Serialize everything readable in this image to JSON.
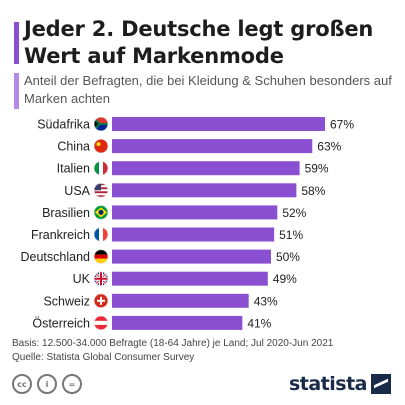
{
  "header": {
    "title": "Jeder 2. Deutsche legt großen Wert auf Markenmode",
    "subtitle": "Anteil der Befragten, die bei Kleidung & Schuhen besonders auf Marken achten"
  },
  "chart_data": {
    "type": "bar",
    "orientation": "horizontal",
    "categories": [
      "Südafrika",
      "China",
      "Italien",
      "USA",
      "Brasilien",
      "Frankreich",
      "Deutschland",
      "UK",
      "Schweiz",
      "Österreich"
    ],
    "values": [
      67,
      63,
      59,
      58,
      52,
      51,
      50,
      49,
      43,
      41
    ],
    "value_labels": [
      "67%",
      "63%",
      "59%",
      "58%",
      "52%",
      "51%",
      "50%",
      "49%",
      "43%",
      "41%"
    ],
    "flag_icons": [
      "south-africa-flag-icon",
      "china-flag-icon",
      "italy-flag-icon",
      "usa-flag-icon",
      "brazil-flag-icon",
      "france-flag-icon",
      "germany-flag-icon",
      "uk-flag-icon",
      "switzerland-flag-icon",
      "austria-flag-icon"
    ],
    "bar_color": "#8a4fd0",
    "grid": false,
    "legend": "none"
  },
  "footnote": {
    "basis": "Basis: 12.500-34.000 Befragte (18-64 Jahre) je Land; Jul 2020-Jun 2021",
    "source": "Quelle: Statista Global Consumer Survey"
  },
  "footer": {
    "license_icons": [
      "cc-icon",
      "by-person-icon",
      "equals-icon"
    ],
    "license_text": [
      "cc",
      "i",
      "="
    ],
    "logo_text": "statista"
  },
  "colors": {
    "accent": "#8a4fd0",
    "accent_light": "#b48ae6",
    "logo": "#1a2b4a"
  }
}
